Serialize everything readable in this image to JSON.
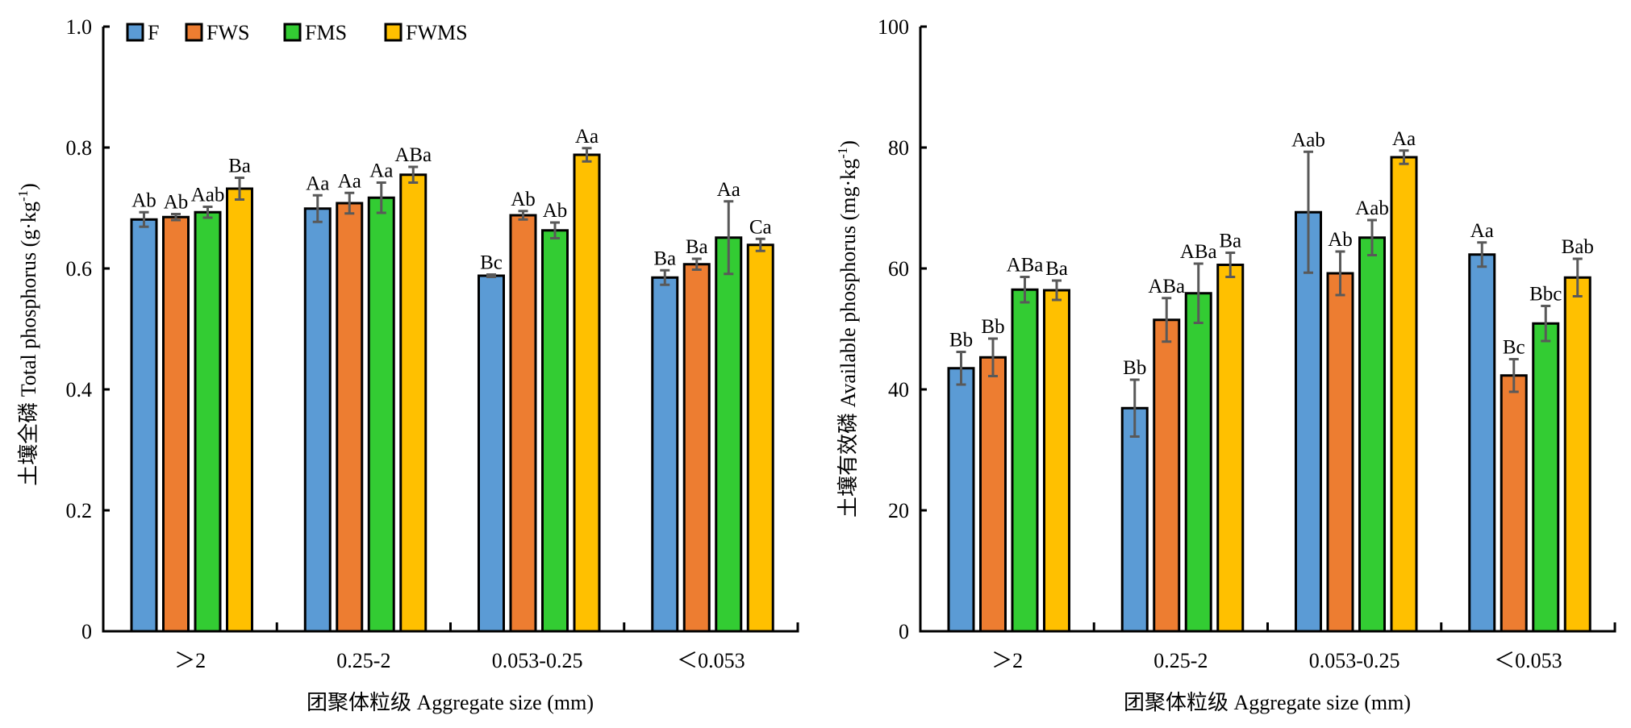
{
  "chart_data": [
    {
      "type": "bar",
      "title": "",
      "xlabel": "团聚体粒级 Aggregate size (mm)",
      "ylabel": "土壤全磷 Total phosphorus (g·kg⁻¹)",
      "ylabel_main": "土壤全磷 Total phosphorus (g·kg",
      "ylabel_sup": "-1",
      "ylabel_end": ")",
      "ylim": [
        0,
        1.0
      ],
      "yticks": [
        0,
        0.2,
        0.4,
        0.6,
        0.8,
        1.0
      ],
      "ytick_labels": [
        "0",
        "0.2",
        "0.4",
        "0.6",
        "0.8",
        "1.0"
      ],
      "grid": false,
      "legend": "top-left",
      "categories": [
        "＞2",
        "0.25-2",
        "0.053-0.25",
        "＜0.053"
      ],
      "series": [
        {
          "name": "F",
          "color": "#5B9BD5",
          "values": [
            0.681,
            0.699,
            0.588,
            0.585
          ],
          "errors": [
            0.012,
            0.022,
            0.002,
            0.012
          ],
          "labels": [
            "Ab",
            "Aa",
            "Bc",
            "Ba"
          ]
        },
        {
          "name": "FWS",
          "color": "#ED7D31",
          "values": [
            0.685,
            0.708,
            0.688,
            0.607
          ],
          "errors": [
            0.005,
            0.017,
            0.007,
            0.009
          ],
          "labels": [
            "Ab",
            "Aa",
            "Ab",
            "Ba"
          ]
        },
        {
          "name": "FMS",
          "color": "#33CC33",
          "values": [
            0.693,
            0.717,
            0.663,
            0.651
          ],
          "errors": [
            0.009,
            0.025,
            0.013,
            0.06
          ],
          "labels": [
            "Aab",
            "Aa",
            "Ab",
            "Aa"
          ]
        },
        {
          "name": "FWMS",
          "color": "#FFC000",
          "values": [
            0.732,
            0.755,
            0.788,
            0.639
          ],
          "errors": [
            0.018,
            0.013,
            0.011,
            0.01
          ],
          "labels": [
            "Ba",
            "ABa",
            "Aa",
            "Ca"
          ]
        }
      ]
    },
    {
      "type": "bar",
      "title": "",
      "xlabel": "团聚体粒级 Aggregate size (mm)",
      "ylabel": "土壤有效磷 Available phosphorus (mg·kg⁻¹)",
      "ylabel_main": "土壤有效磷 Available phosphorus (mg·kg",
      "ylabel_sup": "-1",
      "ylabel_end": ")",
      "ylim": [
        0,
        100
      ],
      "yticks": [
        0,
        20,
        40,
        60,
        80,
        100
      ],
      "ytick_labels": [
        "0",
        "20",
        "40",
        "60",
        "80",
        "100"
      ],
      "grid": false,
      "legend": "none",
      "categories": [
        "＞2",
        "0.25-2",
        "0.053-0.25",
        "＜0.053"
      ],
      "series": [
        {
          "name": "F",
          "color": "#5B9BD5",
          "values": [
            43.5,
            36.9,
            69.3,
            62.3
          ],
          "errors": [
            2.7,
            4.7,
            10.0,
            2.0
          ],
          "labels": [
            "Bb",
            "Bb",
            "Aab",
            "Aa"
          ]
        },
        {
          "name": "FWS",
          "color": "#ED7D31",
          "values": [
            45.3,
            51.5,
            59.2,
            42.3
          ],
          "errors": [
            3.1,
            3.6,
            3.6,
            2.7
          ],
          "labels": [
            "Bb",
            "ABa",
            "Ab",
            "Bc"
          ]
        },
        {
          "name": "FMS",
          "color": "#33CC33",
          "values": [
            56.5,
            55.9,
            65.1,
            50.9
          ],
          "errors": [
            2.1,
            4.9,
            2.9,
            2.9
          ],
          "labels": [
            "ABa",
            "ABa",
            "Aab",
            "Bbc"
          ]
        },
        {
          "name": "FWMS",
          "color": "#FFC000",
          "values": [
            56.4,
            60.6,
            78.4,
            58.5
          ],
          "errors": [
            1.6,
            2.0,
            1.1,
            3.1
          ],
          "labels": [
            "Ba",
            "Ba",
            "Aa",
            "Bab"
          ]
        }
      ]
    }
  ]
}
